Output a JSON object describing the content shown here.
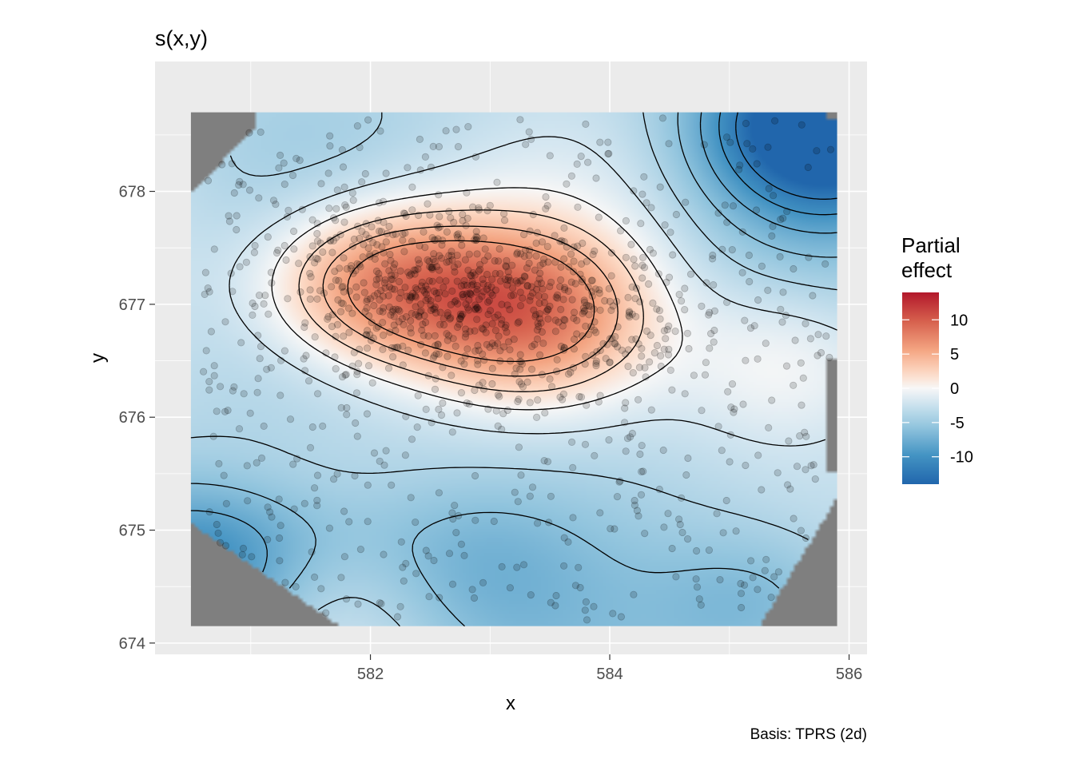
{
  "chart_data": {
    "type": "heatmap",
    "title": "s(x,y)",
    "xlabel": "x",
    "ylabel": "y",
    "caption": "Basis: TPRS (2d)",
    "xlim": [
      580.2,
      586.15
    ],
    "ylim": [
      673.9,
      679.15
    ],
    "x_ticks": [
      582,
      584,
      586
    ],
    "y_ticks": [
      674,
      675,
      676,
      677,
      678
    ],
    "x_tick_labels": [
      "582",
      "584",
      "586"
    ],
    "y_tick_labels": [
      "674",
      "675",
      "676",
      "677",
      "678"
    ],
    "grid": true,
    "legend": {
      "title_line1": "Partial",
      "title_line2": "effect",
      "placement": "right",
      "ticks": [
        10,
        5,
        0,
        -5,
        -10
      ],
      "tick_labels": [
        "10",
        "5",
        "0",
        "-5",
        "-10"
      ],
      "min": -14,
      "max": 14
    },
    "colors": {
      "panel": "#ebebeb",
      "gridline": "#ffffff",
      "na_fill": "#7f7f7f",
      "high": "#b2182b",
      "mid": "#f7f7f7",
      "low": "#2166ac",
      "points": "#000000",
      "contours": "#000000"
    },
    "surface": {
      "x_range": [
        580.5,
        585.9
      ],
      "y_range": [
        674.15,
        678.7
      ],
      "hotspots": [
        {
          "x": 581.9,
          "y": 677.2,
          "effect": 7
        },
        {
          "x": 583.4,
          "y": 676.9,
          "effect": 7
        },
        {
          "x": 582.6,
          "y": 677.1,
          "effect": 4
        },
        {
          "x": 585.8,
          "y": 678.6,
          "effect": -16
        },
        {
          "x": 580.6,
          "y": 674.6,
          "effect": -8
        },
        {
          "x": 582.8,
          "y": 674.6,
          "effect": -4
        },
        {
          "x": 585.3,
          "y": 674.3,
          "effect": -6
        },
        {
          "x": 585.5,
          "y": 676.5,
          "effect": 3
        }
      ],
      "base_effect": -3.5,
      "contour_levels": [
        -12,
        -10,
        -8,
        -6,
        -4,
        -2,
        0,
        2,
        4,
        6
      ]
    },
    "points": {
      "n_dense": 700,
      "n_sparse": 600,
      "dense_center": [
        582.7,
        677.0
      ],
      "x_range": [
        580.6,
        585.85
      ],
      "y_range": [
        674.2,
        678.65
      ]
    }
  }
}
